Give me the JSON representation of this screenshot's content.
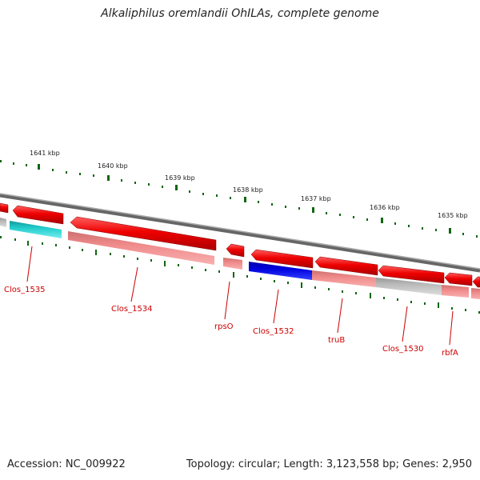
{
  "title": "Alkaliphilus oremlandii OhILAs, complete genome",
  "accession_label": "Accession: NC_009922",
  "summary": "Topology: circular; Length: 3,123,558 bp; Genes: 2,950",
  "scale_ticks": [
    "1641 kbp",
    "1640 kbp",
    "1639 kbp",
    "1638 kbp",
    "1637 kbp",
    "1636 kbp",
    "1635 kbp"
  ],
  "gene_labels": [
    "Clos_1535",
    "Clos_1534",
    "rpsO",
    "Clos_1532",
    "truB",
    "Clos_1530",
    "rbfA"
  ],
  "colors": {
    "backbone": "#777777",
    "cds_arrow": "#ee0000",
    "feature_pink": "#f08a8a",
    "feature_gray": "#bbbbbb",
    "feature_cyan": "#22cccc",
    "feature_blue": "#0000dd",
    "tick": "#116611",
    "label": "#cc0000"
  }
}
